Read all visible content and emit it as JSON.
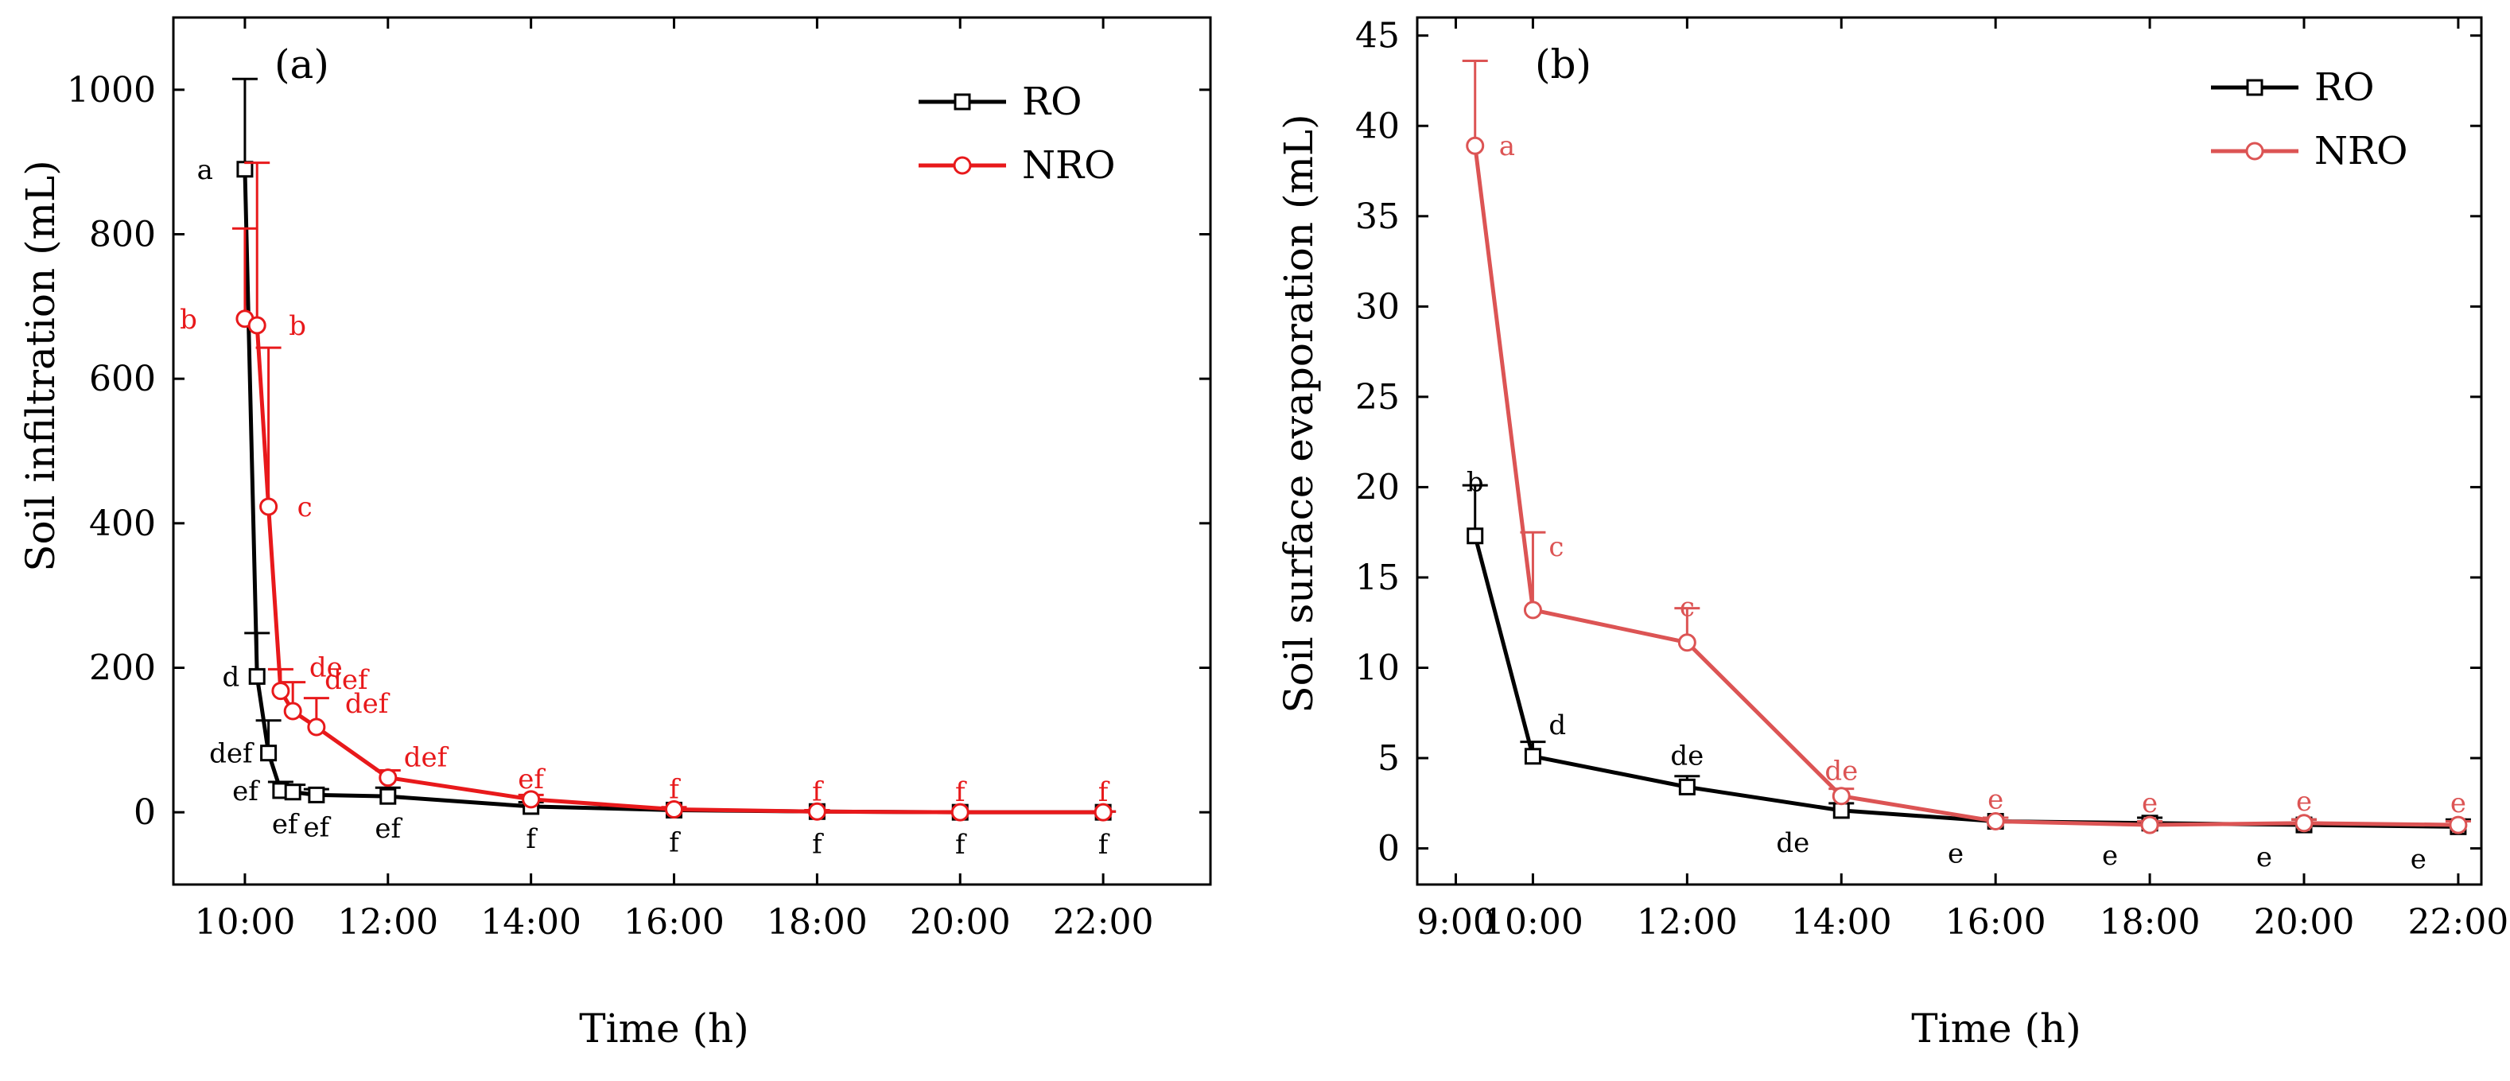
{
  "figure": {
    "panels_count": 2
  },
  "chart_data": [
    {
      "type": "line",
      "panel_label": "(a)",
      "xlabel": "Time (h)",
      "ylabel": "Soil infiltration (mL)",
      "xlim": [
        9.0,
        23.5
      ],
      "ylim": [
        -100,
        1100
      ],
      "xticks": [
        {
          "value": 10,
          "label": "10:00"
        },
        {
          "value": 12,
          "label": "12:00"
        },
        {
          "value": 14,
          "label": "14:00"
        },
        {
          "value": 16,
          "label": "16:00"
        },
        {
          "value": 18,
          "label": "18:00"
        },
        {
          "value": 20,
          "label": "20:00"
        },
        {
          "value": 22,
          "label": "22:00"
        }
      ],
      "yticks": [
        {
          "value": 0,
          "label": "0"
        },
        {
          "value": 200,
          "label": "200"
        },
        {
          "value": 400,
          "label": "400"
        },
        {
          "value": 600,
          "label": "600"
        },
        {
          "value": 800,
          "label": "800"
        },
        {
          "value": 1000,
          "label": "1000"
        }
      ],
      "legend_position": "top-right",
      "series": [
        {
          "name": "RO",
          "color": "#000000",
          "marker": "square",
          "points": [
            {
              "x": 10.0,
              "y": 890,
              "err": 125,
              "sig": "a"
            },
            {
              "x": 10.17,
              "y": 188,
              "err": 60,
              "sig": "d"
            },
            {
              "x": 10.33,
              "y": 82,
              "err": 45,
              "sig": "def"
            },
            {
              "x": 10.5,
              "y": 30,
              "err": 12,
              "sig": "ef"
            },
            {
              "x": 10.67,
              "y": 28,
              "err": 10,
              "sig": "ef"
            },
            {
              "x": 11.0,
              "y": 24,
              "err": 8,
              "sig": "ef"
            },
            {
              "x": 12.0,
              "y": 22,
              "err": 12,
              "sig": "ef"
            },
            {
              "x": 14.0,
              "y": 8,
              "err": 6,
              "sig": "f"
            },
            {
              "x": 16.0,
              "y": 3,
              "err": 3,
              "sig": "f"
            },
            {
              "x": 18.0,
              "y": 1,
              "err": 2,
              "sig": "f"
            },
            {
              "x": 20.0,
              "y": 0,
              "err": 1,
              "sig": "f"
            },
            {
              "x": 22.0,
              "y": 0,
              "err": 1,
              "sig": "f"
            }
          ]
        },
        {
          "name": "NRO",
          "color": "#e8191b",
          "marker": "circle",
          "points": [
            {
              "x": 10.0,
              "y": 683,
              "err": 125,
              "sig": "b"
            },
            {
              "x": 10.17,
              "y": 674,
              "err": 225,
              "sig": "b"
            },
            {
              "x": 10.33,
              "y": 423,
              "err": 220,
              "sig": "c"
            },
            {
              "x": 10.5,
              "y": 168,
              "err": 30,
              "sig": "de"
            },
            {
              "x": 10.67,
              "y": 140,
              "err": 40,
              "sig": "def"
            },
            {
              "x": 11.0,
              "y": 118,
              "err": 40,
              "sig": "def"
            },
            {
              "x": 12.0,
              "y": 48,
              "err": 10,
              "sig": "def"
            },
            {
              "x": 14.0,
              "y": 18,
              "err": 6,
              "sig": "ef"
            },
            {
              "x": 16.0,
              "y": 4,
              "err": 3,
              "sig": "f"
            },
            {
              "x": 18.0,
              "y": 1,
              "err": 2,
              "sig": "f"
            },
            {
              "x": 20.0,
              "y": 0,
              "err": 1,
              "sig": "f"
            },
            {
              "x": 22.0,
              "y": 0,
              "err": 1,
              "sig": "f"
            }
          ]
        }
      ]
    },
    {
      "type": "line",
      "panel_label": "(b)",
      "xlabel": "Time (h)",
      "ylabel": "Soil surface evaporation (mL)",
      "xlim": [
        8.5,
        22.3
      ],
      "ylim": [
        -2,
        46
      ],
      "xticks": [
        {
          "value": 9,
          "label": "9:00"
        },
        {
          "value": 10,
          "label": "10:00"
        },
        {
          "value": 12,
          "label": "12:00"
        },
        {
          "value": 14,
          "label": "14:00"
        },
        {
          "value": 16,
          "label": "16:00"
        },
        {
          "value": 18,
          "label": "18:00"
        },
        {
          "value": 20,
          "label": "20:00"
        },
        {
          "value": 22,
          "label": "22:00"
        }
      ],
      "yticks": [
        {
          "value": 0,
          "label": "0"
        },
        {
          "value": 5,
          "label": "5"
        },
        {
          "value": 10,
          "label": "10"
        },
        {
          "value": 15,
          "label": "15"
        },
        {
          "value": 20,
          "label": "20"
        },
        {
          "value": 25,
          "label": "25"
        },
        {
          "value": 30,
          "label": "30"
        },
        {
          "value": 35,
          "label": "35"
        },
        {
          "value": 40,
          "label": "40"
        },
        {
          "value": 45,
          "label": "45"
        }
      ],
      "legend_position": "top-right",
      "series": [
        {
          "name": "RO",
          "color": "#000000",
          "marker": "square",
          "points": [
            {
              "x": 9.25,
              "y": 17.3,
              "err": 2.8,
              "sig": "b"
            },
            {
              "x": 10.0,
              "y": 5.1,
              "err": 0.8,
              "sig": "d"
            },
            {
              "x": 12.0,
              "y": 3.4,
              "err": 0.6,
              "sig": "de"
            },
            {
              "x": 14.0,
              "y": 2.1,
              "err": 0.4,
              "sig": "de"
            },
            {
              "x": 16.0,
              "y": 1.5,
              "err": 0.2,
              "sig": "e"
            },
            {
              "x": 18.0,
              "y": 1.4,
              "err": 0.3,
              "sig": "e"
            },
            {
              "x": 20.0,
              "y": 1.3,
              "err": 0.3,
              "sig": "e"
            },
            {
              "x": 22.0,
              "y": 1.2,
              "err": 0.4,
              "sig": "e"
            }
          ]
        },
        {
          "name": "NRO",
          "color": "#dc5454",
          "marker": "circle",
          "points": [
            {
              "x": 9.25,
              "y": 38.9,
              "err": 4.7,
              "sig": "a"
            },
            {
              "x": 10.0,
              "y": 13.2,
              "err": 4.3,
              "sig": "c"
            },
            {
              "x": 12.0,
              "y": 11.4,
              "err": 1.9,
              "sig": "c"
            },
            {
              "x": 14.0,
              "y": 2.9,
              "err": 0.4,
              "sig": "de"
            },
            {
              "x": 16.0,
              "y": 1.5,
              "err": 0.2,
              "sig": "e"
            },
            {
              "x": 18.0,
              "y": 1.3,
              "err": 0.2,
              "sig": "e"
            },
            {
              "x": 20.0,
              "y": 1.4,
              "err": 0.2,
              "sig": "e"
            },
            {
              "x": 22.0,
              "y": 1.3,
              "err": 0.2,
              "sig": "e"
            }
          ]
        }
      ]
    }
  ]
}
